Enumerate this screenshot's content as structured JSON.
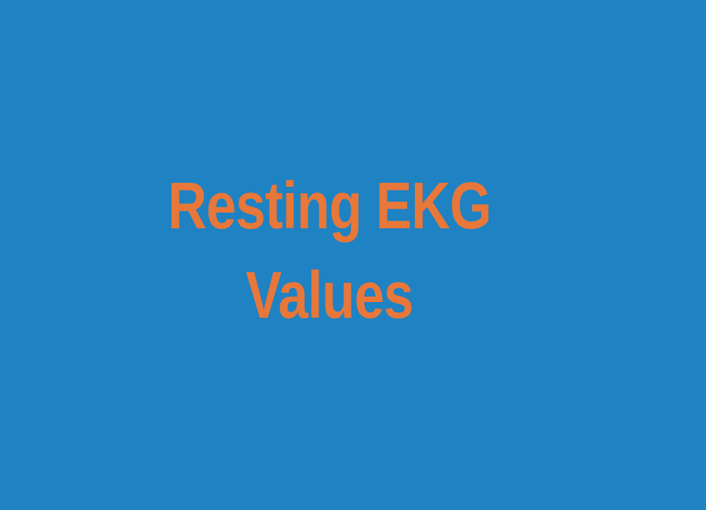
{
  "title": {
    "line1": "Resting EKG",
    "line2": "Values"
  },
  "colors": {
    "background": "#1e82c3",
    "text": "#e8773a"
  }
}
